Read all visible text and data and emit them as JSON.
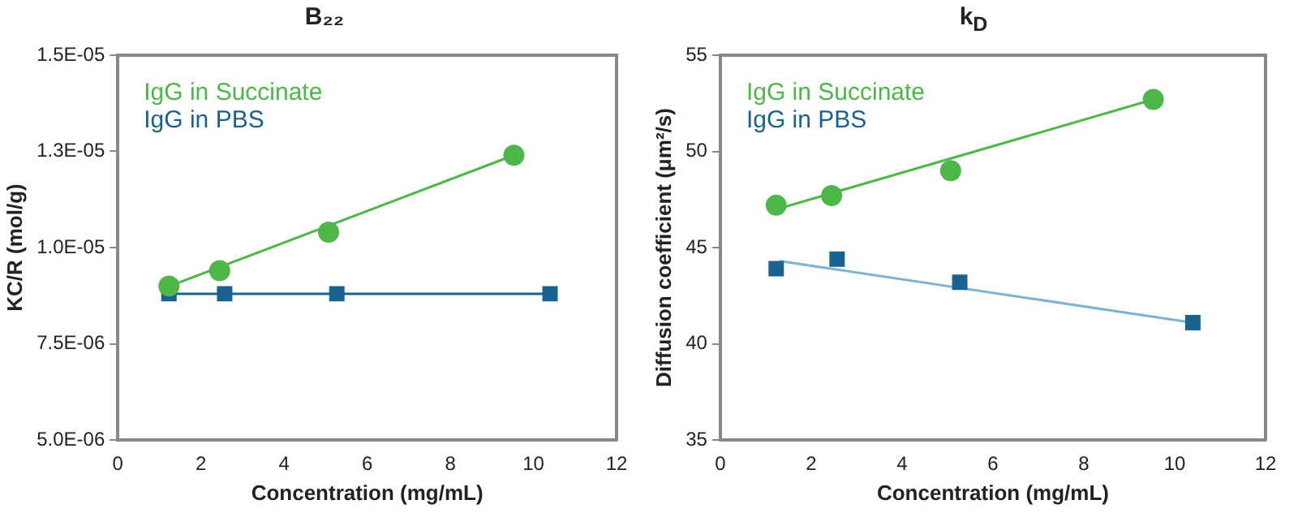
{
  "chart_data": [
    {
      "type": "scatter",
      "title": "B₂₂",
      "xlabel": "Concentration (mg/mL)",
      "ylabel": "KC/R (mol/g)",
      "xlim": [
        0,
        12
      ],
      "xticks": [
        0,
        2,
        4,
        6,
        8,
        10,
        12
      ],
      "ylim": [
        5e-06,
        1.5e-05
      ],
      "yticks": [
        {
          "value": 5e-06,
          "label": "5.0E-06"
        },
        {
          "value": 7.5e-06,
          "label": "7.5E-06"
        },
        {
          "value": 1e-05,
          "label": "1.0E-05"
        },
        {
          "value": 1.25e-05,
          "label": "1.3E-05"
        },
        {
          "value": 1.5e-05,
          "label": "1.5E-05"
        }
      ],
      "grid": false,
      "legend": "top left",
      "series": [
        {
          "name": "IgG in Succinate",
          "type": "scatter",
          "color": "#4db848",
          "marker": "circle",
          "x": [
            1.23,
            2.45,
            5.07,
            9.53
          ],
          "values": [
            9e-06,
            9.4e-06,
            1.04e-05,
            1.24e-05
          ]
        },
        {
          "name": "IgG in PBS",
          "type": "scatter",
          "color": "#1a6390",
          "marker": "square",
          "x": [
            1.23,
            2.57,
            5.27,
            10.4
          ],
          "values": [
            8.8e-06,
            8.8e-06,
            8.8e-06,
            8.8e-06
          ]
        },
        {
          "type": "line",
          "color": "#4db848",
          "marker": "none",
          "x": [
            1.25,
            9.53
          ],
          "values": [
            9e-06,
            1.24e-05
          ]
        },
        {
          "type": "line",
          "color": "#1a6390",
          "marker": "none",
          "x": [
            1.2,
            10.4
          ],
          "values": [
            8.8e-06,
            8.8e-06
          ]
        }
      ]
    },
    {
      "type": "scatter",
      "title": "k$_{D}$",
      "xlabel": "Concentration (mg/mL)",
      "ylabel": "Diffusion coefficient (μm²/s)",
      "xlim": [
        0,
        12
      ],
      "xticks": [
        0,
        2,
        4,
        6,
        8,
        10,
        12
      ],
      "ylim": [
        35,
        55
      ],
      "yticks": [
        35,
        40,
        45,
        50,
        55
      ],
      "grid": false,
      "legend": "top left",
      "series": [
        {
          "name": "IgG in Succinate",
          "type": "scatter",
          "color": "#4db848",
          "marker": "circle",
          "x": [
            1.23,
            2.45,
            5.07,
            9.53
          ],
          "values": [
            47.2,
            47.7,
            49.0,
            52.7
          ]
        },
        {
          "name": "IgG in PBS",
          "type": "scatter",
          "color": "#1a6390",
          "marker": "square",
          "x": [
            1.23,
            2.57,
            5.27,
            10.4
          ],
          "values": [
            43.9,
            44.4,
            43.2,
            41.1
          ]
        },
        {
          "type": "line",
          "color": "#4db848",
          "marker": "none",
          "x": [
            1.25,
            9.53
          ],
          "values": [
            47.0,
            52.7
          ]
        },
        {
          "type": "line",
          "color": "#7fb3d1",
          "marker": "none",
          "x": [
            1.3,
            10.4
          ],
          "values": [
            44.3,
            41.1
          ]
        }
      ]
    }
  ]
}
